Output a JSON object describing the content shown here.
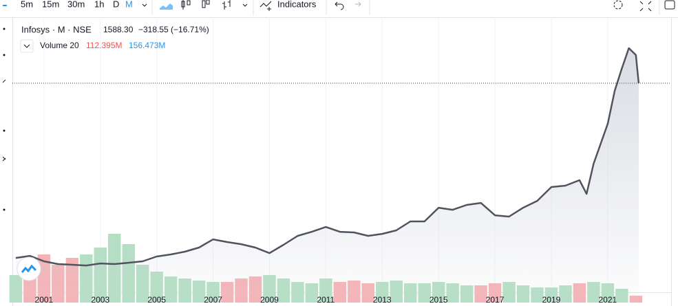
{
  "toolbar": {
    "intervals": [
      "5m",
      "15m",
      "30m",
      "1h",
      "D",
      "M"
    ],
    "indicators": "Indicators"
  },
  "chart_data": {
    "type": "area",
    "symbol": "Infosys · M · NSE",
    "last": {
      "value": 1588.3,
      "label": "1588.30"
    },
    "change": "−318.55 (−16.71%)",
    "volume_title": "Volume 20",
    "volume_value": "112.395M",
    "volume_ma": "156.473M",
    "x": [
      2000.0,
      2000.5,
      2001.0,
      2001.5,
      2002.0,
      2002.5,
      2003.0,
      2003.5,
      2004.0,
      2004.5,
      2005.0,
      2005.5,
      2006.0,
      2006.5,
      2007.0,
      2007.5,
      2008.0,
      2008.5,
      2009.0,
      2009.5,
      2010.0,
      2010.5,
      2011.0,
      2011.5,
      2012.0,
      2012.5,
      2013.0,
      2013.5,
      2014.0,
      2014.5,
      2015.0,
      2015.5,
      2016.0,
      2016.5,
      2017.0,
      2017.5,
      2018.0,
      2018.5,
      2019.0,
      2019.5,
      2020.0,
      2020.25,
      2020.5,
      2021.0,
      2021.25,
      2021.5,
      2021.75,
      2022.0,
      2022.1
    ],
    "values": [
      137,
      154,
      109,
      86,
      80,
      74,
      91,
      86,
      97,
      109,
      149,
      166,
      189,
      223,
      291,
      269,
      251,
      223,
      177,
      246,
      320,
      354,
      394,
      354,
      349,
      320,
      337,
      366,
      440,
      440,
      554,
      537,
      577,
      594,
      491,
      480,
      554,
      611,
      726,
      737,
      783,
      669,
      920,
      1251,
      1526,
      1709,
      1880,
      1823,
      1588.3
    ],
    "color": "#50535e",
    "volume": {
      "x": [
        2000.0,
        2000.5,
        2001.0,
        2001.5,
        2002.0,
        2002.5,
        2003.0,
        2003.5,
        2004.0,
        2004.5,
        2005.0,
        2005.5,
        2006.0,
        2006.5,
        2007.0,
        2007.5,
        2008.0,
        2008.5,
        2009.0,
        2009.5,
        2010.0,
        2010.5,
        2011.0,
        2011.5,
        2012.0,
        2012.5,
        2013.0,
        2013.5,
        2014.0,
        2014.5,
        2015.0,
        2015.5,
        2016.0,
        2016.5,
        2017.0,
        2017.5,
        2018.0,
        2018.5,
        2019.0,
        2019.5,
        2020.0,
        2020.5,
        2021.0,
        2021.5,
        2022.0
      ],
      "values": [
        640,
        960,
        1120,
        880,
        1040,
        1120,
        1280,
        1600,
        1360,
        880,
        720,
        608,
        560,
        512,
        480,
        480,
        560,
        608,
        640,
        560,
        480,
        448,
        560,
        480,
        512,
        448,
        480,
        512,
        448,
        448,
        480,
        448,
        400,
        400,
        448,
        480,
        400,
        352,
        352,
        400,
        448,
        480,
        448,
        320,
        160
      ],
      "ylim": [
        0,
        6640
      ],
      "up_color": "#b5dfc4",
      "down_color": "#f6b3b6"
    },
    "xlim": [
      1999.44,
      2023.25
    ],
    "xticks": [
      2001,
      2003,
      2005,
      2007,
      2009,
      2011,
      2013,
      2015,
      2017,
      2019,
      2021
    ],
    "ylim": [
      -234,
      2137
    ],
    "grid": true
  }
}
